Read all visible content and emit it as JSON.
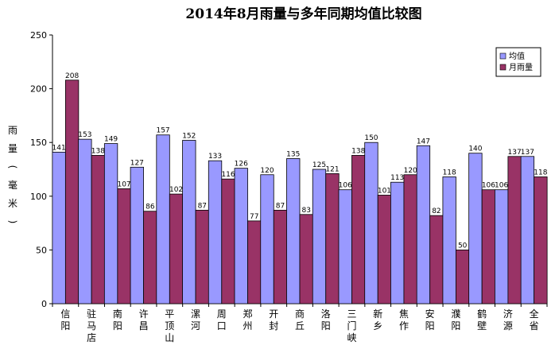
{
  "chart_data": {
    "type": "bar",
    "title": "2014年8月雨量与多年同期均值比较图",
    "ylabel": "雨量（毫米）",
    "xlabel": "",
    "ylim": [
      0,
      250
    ],
    "yticks": [
      0,
      50,
      100,
      150,
      200,
      250
    ],
    "grid": false,
    "legend_position": "top-right",
    "categories": [
      "信阳",
      "驻马店",
      "南阳",
      "许昌",
      "平顶山",
      "漯河",
      "周口",
      "郑州",
      "开封",
      "商丘",
      "洛阳",
      "三门峡",
      "新乡",
      "焦作",
      "安阳",
      "濮阳",
      "鹤壁",
      "济源",
      "全省"
    ],
    "series": [
      {
        "name": "均值",
        "color": "#9999ff",
        "values": [
          141,
          153,
          149,
          127,
          157,
          152,
          133,
          126,
          120,
          135,
          125,
          106,
          150,
          113,
          147,
          118,
          140,
          106,
          137
        ]
      },
      {
        "name": "月雨量",
        "color": "#993366",
        "values": [
          208,
          138,
          107,
          86,
          102,
          87,
          116,
          77,
          87,
          83,
          121,
          138,
          101,
          120,
          82,
          50,
          106,
          137,
          118
        ]
      }
    ]
  }
}
